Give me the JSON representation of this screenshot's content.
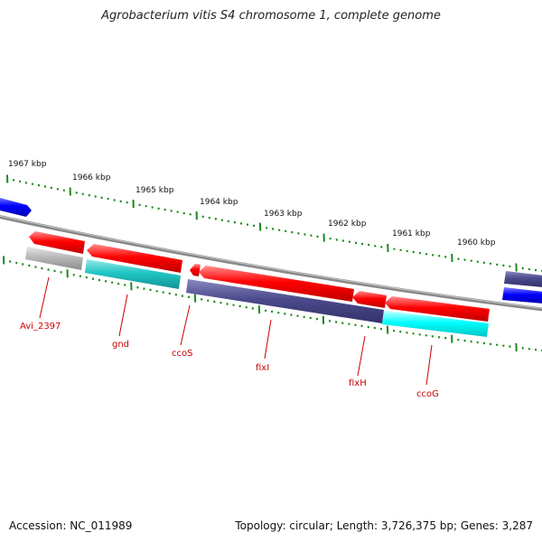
{
  "header": {
    "title": "Agrobacterium vitis S4 chromosome 1, complete genome"
  },
  "footer": {
    "accession": "Accession: NC_011989",
    "stats": "Topology: circular; Length: 3,726,375 bp; Genes: 3,287"
  },
  "ruler": {
    "tick_labels": [
      "1967 kbp",
      "1966 kbp",
      "1965 kbp",
      "1964 kbp",
      "1963 kbp",
      "1962 kbp",
      "1961 kbp",
      "1960 kbp"
    ]
  },
  "colors": {
    "forward_gene": "#ff0000",
    "reverse_gene": "#ff0000",
    "blue_gene": "#0000ff",
    "purple_feature": "#4b4a8c",
    "teal_feature": "#20c6c6",
    "cyan_feature": "#00ffff",
    "gray_feature": "#b8b8b8",
    "backbone": "#888888",
    "tick": "#1a8a1a",
    "label": "#cc0000"
  },
  "genes": [
    {
      "name": "Avi_2397"
    },
    {
      "name": "gnd"
    },
    {
      "name": "ccoS"
    },
    {
      "name": "fixI"
    },
    {
      "name": "fixH"
    },
    {
      "name": "ccoG"
    }
  ]
}
